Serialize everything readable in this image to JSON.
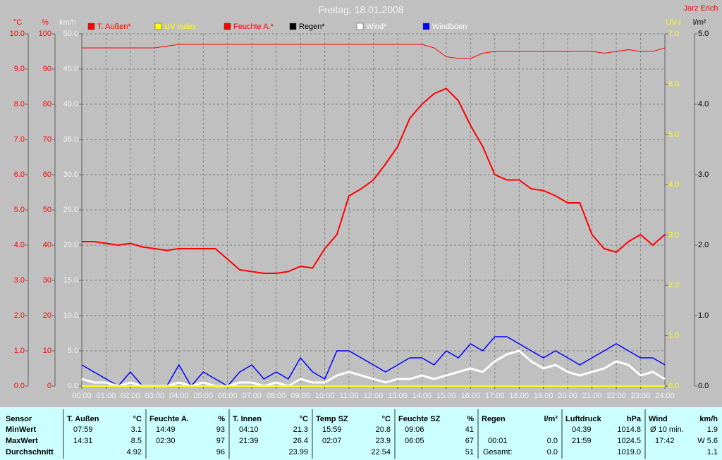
{
  "chart_data": {
    "type": "line",
    "title": "Freitag, 18.01.2008",
    "author": "Jarz Erich",
    "ylabel": "°C",
    "y2label": "%",
    "y3label": "km/h",
    "y4label": "UV-I",
    "y5label": "l/m²",
    "grid": true,
    "x": [
      0,
      0.5,
      1,
      1.5,
      2,
      2.5,
      3,
      3.5,
      4,
      4.5,
      5,
      5.5,
      6,
      6.5,
      7,
      7.5,
      8,
      8.5,
      9,
      9.5,
      10,
      10.5,
      11,
      11.5,
      12,
      12.5,
      13,
      13.5,
      14,
      14.5,
      15,
      15.5,
      16,
      16.5,
      17,
      17.5,
      18,
      18.5,
      19,
      19.5,
      20,
      20.5,
      21,
      21.5,
      22,
      22.5,
      23,
      23.5,
      24
    ],
    "xlim": [
      0,
      24
    ],
    "xticks": [
      {
        "value": 0,
        "label": "00:00"
      },
      {
        "value": 1,
        "label": "01:00"
      },
      {
        "value": 2,
        "label": "02:00"
      },
      {
        "value": 3,
        "label": "03:00"
      },
      {
        "value": 4,
        "label": "04:00"
      },
      {
        "value": 5,
        "label": "05:00"
      },
      {
        "value": 6,
        "label": "06:00"
      },
      {
        "value": 7,
        "label": "07:00"
      },
      {
        "value": 8,
        "label": "08:00"
      },
      {
        "value": 9,
        "label": "09:00"
      },
      {
        "value": 10,
        "label": "10:00"
      },
      {
        "value": 11,
        "label": "11:00"
      },
      {
        "value": 12,
        "label": "12:00"
      },
      {
        "value": 13,
        "label": "13:00"
      },
      {
        "value": 14,
        "label": "14:00"
      },
      {
        "value": 15,
        "label": "15:00"
      },
      {
        "value": 16,
        "label": "16:00"
      },
      {
        "value": 17,
        "label": "17:00"
      },
      {
        "value": 18,
        "label": "18:00"
      },
      {
        "value": 19,
        "label": "19:00"
      },
      {
        "value": 20,
        "label": "20:00"
      },
      {
        "value": 21,
        "label": "21:00"
      },
      {
        "value": 22,
        "label": "22:00"
      },
      {
        "value": 23,
        "label": "23:00"
      },
      {
        "value": 24,
        "label": "24:00"
      }
    ],
    "ylim": [
      0,
      10
    ],
    "yticks": [
      {
        "value": 0,
        "label": "0.0"
      },
      {
        "value": 1,
        "label": "1.0"
      },
      {
        "value": 2,
        "label": "2.0"
      },
      {
        "value": 3,
        "label": "3.0"
      },
      {
        "value": 4,
        "label": "4.0"
      },
      {
        "value": 5,
        "label": "5.0"
      },
      {
        "value": 6,
        "label": "6.0"
      },
      {
        "value": 7,
        "label": "7.0"
      },
      {
        "value": 8,
        "label": "8.0"
      },
      {
        "value": 9,
        "label": "9.0"
      },
      {
        "value": 10,
        "label": "10.0"
      }
    ],
    "y2lim": [
      0,
      100
    ],
    "y2ticks": [
      0,
      10,
      20,
      30,
      40,
      50,
      60,
      70,
      80,
      90,
      100
    ],
    "y3lim": [
      0,
      50
    ],
    "y3ticks": [
      {
        "value": 0,
        "label": "0.0"
      },
      {
        "value": 5,
        "label": "5.0"
      },
      {
        "value": 10,
        "label": "10.0"
      },
      {
        "value": 15,
        "label": "15.0"
      },
      {
        "value": 20,
        "label": "20.0"
      },
      {
        "value": 25,
        "label": "25.0"
      },
      {
        "value": 30,
        "label": "30.0"
      },
      {
        "value": 35,
        "label": "35.0"
      },
      {
        "value": 40,
        "label": "40.0"
      },
      {
        "value": 45,
        "label": "45.0"
      },
      {
        "value": 50,
        "label": "50.0"
      }
    ],
    "y4lim": [
      0,
      7
    ],
    "y4ticks": [
      {
        "value": 0,
        "label": "0.0"
      },
      {
        "value": 1,
        "label": "1.0"
      },
      {
        "value": 2,
        "label": "2.0"
      },
      {
        "value": 3,
        "label": "3.0"
      },
      {
        "value": 4,
        "label": "4.0"
      },
      {
        "value": 5,
        "label": "5.0"
      },
      {
        "value": 6,
        "label": "6.0"
      },
      {
        "value": 7,
        "label": "7.0"
      }
    ],
    "y5lim": [
      0,
      5
    ],
    "y5ticks": [
      {
        "value": 0,
        "label": "0.0"
      },
      {
        "value": 1,
        "label": "1.0"
      },
      {
        "value": 2,
        "label": "2.0"
      },
      {
        "value": 3,
        "label": "3.0"
      },
      {
        "value": 4,
        "label": "4.0"
      },
      {
        "value": 5,
        "label": "5.0"
      }
    ],
    "series": [
      {
        "name": "T. Außen*",
        "color": "#ff0000",
        "axis": "y",
        "values": [
          4.1,
          4.1,
          4.05,
          4.0,
          4.05,
          3.95,
          3.9,
          3.85,
          3.9,
          3.9,
          3.9,
          3.9,
          3.6,
          3.3,
          3.25,
          3.2,
          3.2,
          3.25,
          3.4,
          3.35,
          3.9,
          4.3,
          5.4,
          5.6,
          5.85,
          6.3,
          6.8,
          7.6,
          8.0,
          8.3,
          8.45,
          8.1,
          7.4,
          6.8,
          6.0,
          5.85,
          5.85,
          5.6,
          5.55,
          5.4,
          5.2,
          5.2,
          4.3,
          3.9,
          3.8,
          4.1,
          4.3,
          4.0,
          4.3
        ]
      },
      {
        "name": "UV Index",
        "color": "#ffff00",
        "axis": "y4",
        "values": [
          0,
          0,
          0,
          0,
          0,
          0,
          0,
          0,
          0,
          0,
          0,
          0,
          0,
          0,
          0,
          0,
          0,
          0,
          0,
          0,
          0,
          0,
          0,
          0,
          0,
          0,
          0,
          0,
          0,
          0,
          0,
          0,
          0,
          0,
          0,
          0,
          0,
          0,
          0,
          0,
          0,
          0,
          0,
          0,
          0,
          0,
          0,
          0,
          0
        ]
      },
      {
        "name": "Feuchte A.*",
        "color": "#ff0000",
        "axis": "y2",
        "values": [
          96,
          96,
          96,
          96,
          96,
          96,
          96,
          96.5,
          97,
          97,
          97,
          97,
          97,
          97,
          97,
          97,
          97,
          97,
          97,
          97,
          97,
          97,
          97,
          97,
          97,
          97,
          97,
          97,
          97,
          96,
          93.5,
          93,
          93,
          94.5,
          95,
          95,
          95,
          95,
          95,
          95,
          95,
          95,
          95,
          94.5,
          95,
          95.5,
          95,
          95,
          96
        ]
      },
      {
        "name": "Regen*",
        "color": "#000000",
        "axis": "y5",
        "values": [
          0,
          0,
          0,
          0,
          0,
          0,
          0,
          0,
          0,
          0,
          0,
          0,
          0,
          0,
          0,
          0,
          0,
          0,
          0,
          0,
          0,
          0,
          0,
          0,
          0,
          0,
          0,
          0,
          0,
          0,
          0,
          0,
          0,
          0,
          0,
          0,
          0,
          0,
          0,
          0,
          0,
          0,
          0,
          0,
          0,
          0,
          0,
          0,
          0
        ]
      },
      {
        "name": "Wind*",
        "color": "#ffffff",
        "axis": "y3",
        "values": [
          1,
          0.5,
          0.5,
          0,
          0.5,
          0,
          0,
          0,
          0.5,
          0,
          0.5,
          0,
          0,
          0.5,
          0.5,
          0,
          0.5,
          0,
          1,
          0.5,
          0.5,
          1.5,
          2,
          1.5,
          1,
          0.5,
          1,
          1,
          1.5,
          1,
          1.5,
          2,
          2.5,
          2,
          3.5,
          4.5,
          5,
          3.5,
          2.5,
          3,
          2,
          1.5,
          2,
          2.5,
          3.5,
          3,
          1.5,
          2,
          1
        ]
      },
      {
        "name": "Windböen",
        "color": "#0000ff",
        "axis": "y3",
        "values": [
          3,
          2,
          1,
          0,
          2,
          0,
          0,
          0,
          3,
          0,
          2,
          1,
          0,
          2,
          3,
          1,
          2,
          1,
          4,
          2,
          1,
          5,
          5,
          4,
          3,
          2,
          3,
          4,
          4,
          3,
          5,
          4,
          6,
          5,
          7,
          7,
          6,
          5,
          4,
          5,
          4,
          3,
          4,
          5,
          6,
          5,
          4,
          4,
          3
        ]
      }
    ]
  },
  "table": {
    "sensor": {
      "header": "Sensor",
      "rows": [
        "MinWert",
        "MaxWert",
        "Durchschnitt"
      ]
    },
    "groups": [
      {
        "name": "T. Außen",
        "unit": "°C",
        "rows": [
          {
            "time": "07:59",
            "value": "3.1"
          },
          {
            "time": "14:31",
            "value": "8.5"
          },
          {
            "value": "4.92"
          }
        ]
      },
      {
        "name": "Feuchte A.",
        "unit": "%",
        "rows": [
          {
            "time": "14:49",
            "value": "93"
          },
          {
            "time": "02:30",
            "value": "97"
          },
          {
            "value": "96"
          }
        ]
      },
      {
        "name": "T. Innen",
        "unit": "°C",
        "rows": [
          {
            "time": "04:10",
            "value": "21.3"
          },
          {
            "time": "21:39",
            "value": "26.4"
          },
          {
            "value": "23.99"
          }
        ]
      },
      {
        "name": "Temp SZ",
        "unit": "°C",
        "rows": [
          {
            "time": "15:59",
            "value": "20.8"
          },
          {
            "time": "02:07",
            "value": "23.9"
          },
          {
            "value": "22.54"
          }
        ]
      },
      {
        "name": "Feuchte SZ",
        "unit": "%",
        "rows": [
          {
            "time": "09:06",
            "value": "41"
          },
          {
            "time": "06:05",
            "value": "67"
          },
          {
            "value": "51"
          }
        ]
      },
      {
        "name": "Regen",
        "unit": "l/m²",
        "rows": [
          {},
          {
            "time": "00:01",
            "value": "0.0"
          },
          {
            "time": "Gesamt:",
            "value": "0.0"
          }
        ]
      },
      {
        "name": "Luftdruck",
        "unit": "hPa",
        "rows": [
          {
            "time": "04:39",
            "value": "1014.8"
          },
          {
            "time": "21:59",
            "value": "1024.5"
          },
          {
            "value": "1019.0"
          }
        ]
      },
      {
        "name": "Wind",
        "unit": "km/h",
        "rows": [
          {
            "time": "Ø 10 min.",
            "value": "1.9"
          },
          {
            "time": "17:42",
            "value": "W 5.6"
          },
          {
            "value": "1.1"
          }
        ]
      }
    ]
  }
}
